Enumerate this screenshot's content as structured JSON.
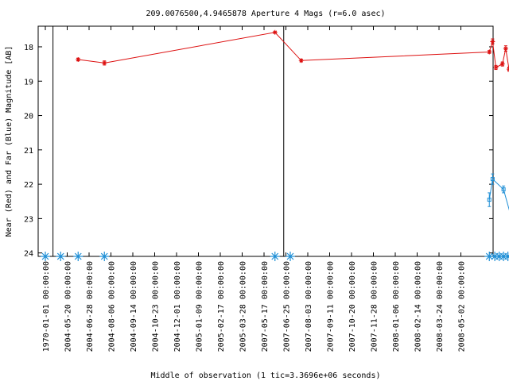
{
  "chart_data": {
    "type": "scatter",
    "title": "209.0076500,4.9465878   Aperture 4 Mags (r=6.0 asec)",
    "xlabel": "Middle of observation (1 tic=3.3696e+06 seconds)",
    "ylabel": "Near (Red) and Far (Blue) Magnitude [AB]",
    "ylim": [
      24.1,
      17.4
    ],
    "y_inverted": true,
    "y_ticks": [
      "18",
      "19",
      "20",
      "21",
      "22",
      "23",
      "24"
    ],
    "x_ticks": [
      "1970-01-01 00:00:00",
      "2004-05-20 00:00:00",
      "2004-06-28 00:00:00",
      "2004-08-06 00:00:00",
      "2004-09-14 00:00:00",
      "2004-10-23 00:00:00",
      "2004-12-01 00:00:00",
      "2005-01-09 00:00:00",
      "2005-02-17 00:00:00",
      "2005-03-28 00:00:00",
      "2007-05-17 00:00:00",
      "2007-06-25 00:00:00",
      "2007-08-03 00:00:00",
      "2007-09-11 00:00:00",
      "2007-10-20 00:00:00",
      "2007-11-28 00:00:00",
      "2008-01-06 00:00:00",
      "2008-02-14 00:00:00",
      "2008-03-24 00:00:00",
      "2008-05-02 00:00:00"
    ],
    "grid": false,
    "legend": "none",
    "series": [
      {
        "color": "#dd1010",
        "marker": "star",
        "points": [
          {
            "x": 1.5,
            "y": 18.37,
            "err": 0.04
          },
          {
            "x": 2.7,
            "y": 18.47,
            "err": 0.06
          },
          {
            "x": 10.5,
            "y": 17.58,
            "err": 0.02
          },
          {
            "x": 11.7,
            "y": 18.4,
            "err": 0.04
          },
          {
            "x": 20.3,
            "y": 18.15,
            "err": 0.04
          },
          {
            "x": 20.45,
            "y": 17.85,
            "err": 0.08
          },
          {
            "x": 20.6,
            "y": 18.6,
            "err": 0.06
          },
          {
            "x": 20.9,
            "y": 18.5,
            "err": 0.06
          },
          {
            "x": 21.05,
            "y": 18.05,
            "err": 0.08
          },
          {
            "x": 21.2,
            "y": 18.65,
            "err": 0.06
          },
          {
            "x": 21.35,
            "y": 18.3,
            "err": 0.08
          },
          {
            "x": 21.6,
            "y": 18.65,
            "err": 0.06
          },
          {
            "x": 21.8,
            "y": 18.7,
            "err": 0.06
          },
          {
            "x": 21.95,
            "y": 17.65,
            "err": 0.04
          }
        ]
      },
      {
        "color": "#1f8fd6",
        "marker": "square",
        "points": [
          {
            "x": 20.3,
            "y": 22.45,
            "err": 0.2
          },
          {
            "x": 20.45,
            "y": 21.85,
            "err": 0.15
          },
          {
            "x": 20.95,
            "y": 22.15,
            "err": 0.1
          },
          {
            "x": 21.3,
            "y": 22.95,
            "err": 0.2
          },
          {
            "x": 21.45,
            "y": 23.5,
            "err": 0.25
          },
          {
            "x": 21.95,
            "y": 21.3,
            "err": 0.08
          }
        ]
      }
    ],
    "nondetections": [
      0,
      0.7,
      1.5,
      2.7,
      10.5,
      11.2,
      20.3,
      20.55,
      20.75,
      20.95,
      21.15,
      21.35,
      21.6,
      21.85
    ],
    "nondetection_color": "#1f8fd6",
    "vertical_lines": [
      0.35,
      10.9
    ]
  }
}
